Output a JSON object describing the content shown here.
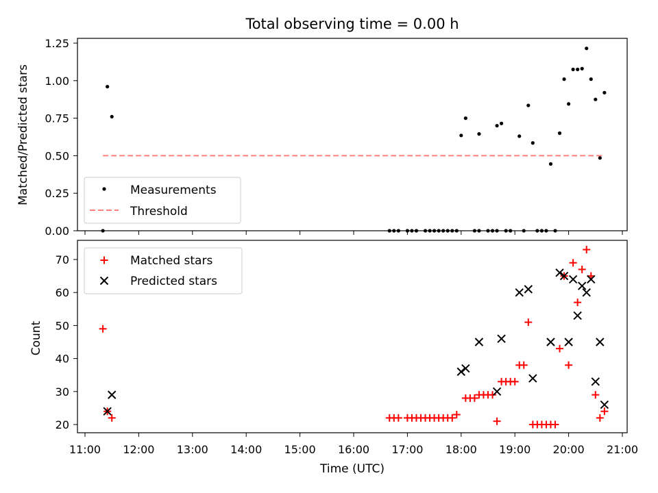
{
  "chart_data": [
    {
      "type": "scatter",
      "title": "Total observing time = 0.00 h",
      "xlabel": "",
      "ylabel": "Matched/Predicted stars",
      "xlim": [
        "11:00",
        "21:00"
      ],
      "ylim": [
        0,
        1.25
      ],
      "yticks": [
        "0.00",
        "0.25",
        "0.50",
        "0.75",
        "1.00",
        "1.25"
      ],
      "legend_position": "lower-left",
      "series": [
        {
          "name": "Measurements",
          "kind": "scatter",
          "color": "#000000",
          "points": [
            [
              "11:20",
              0.0
            ],
            [
              "11:25",
              0.96
            ],
            [
              "11:30",
              0.76
            ],
            [
              "16:40",
              0.0
            ],
            [
              "16:45",
              0.0
            ],
            [
              "16:50",
              0.0
            ],
            [
              "17:00",
              0.0
            ],
            [
              "17:05",
              0.0
            ],
            [
              "17:10",
              0.0
            ],
            [
              "17:20",
              0.0
            ],
            [
              "17:25",
              0.0
            ],
            [
              "17:30",
              0.0
            ],
            [
              "17:35",
              0.0
            ],
            [
              "17:40",
              0.0
            ],
            [
              "17:45",
              0.0
            ],
            [
              "17:50",
              0.0
            ],
            [
              "17:55",
              0.0
            ],
            [
              "18:00",
              0.635
            ],
            [
              "18:05",
              0.75
            ],
            [
              "18:15",
              0.0
            ],
            [
              "18:20",
              0.0
            ],
            [
              "18:20",
              0.645
            ],
            [
              "18:30",
              0.0
            ],
            [
              "18:35",
              0.0
            ],
            [
              "18:40",
              0.0
            ],
            [
              "18:40",
              0.7
            ],
            [
              "18:45",
              0.715
            ],
            [
              "18:50",
              0.0
            ],
            [
              "18:55",
              0.0
            ],
            [
              "19:05",
              0.63
            ],
            [
              "19:10",
              0.0
            ],
            [
              "19:15",
              0.835
            ],
            [
              "19:20",
              0.585
            ],
            [
              "19:25",
              0.0
            ],
            [
              "19:30",
              0.0
            ],
            [
              "19:35",
              0.0
            ],
            [
              "19:40",
              0.445
            ],
            [
              "19:45",
              0.0
            ],
            [
              "19:50",
              0.65
            ],
            [
              "19:55",
              1.01
            ],
            [
              "20:00",
              0.845
            ],
            [
              "20:05",
              1.075
            ],
            [
              "20:10",
              1.075
            ],
            [
              "20:15",
              1.08
            ],
            [
              "20:20",
              1.215
            ],
            [
              "20:25",
              1.01
            ],
            [
              "20:30",
              0.875
            ],
            [
              "20:35",
              0.485
            ],
            [
              "20:40",
              0.92
            ]
          ]
        },
        {
          "name": "Threshold",
          "kind": "dashed-line",
          "color": "#ff7f7f",
          "points": [
            [
              "11:20",
              0.5
            ],
            [
              "20:40",
              0.5
            ]
          ]
        }
      ]
    },
    {
      "type": "scatter",
      "title": "",
      "xlabel": "Time (UTC)",
      "ylabel": "Count",
      "xlim": [
        "11:00",
        "21:00"
      ],
      "ylim": [
        17.5,
        76
      ],
      "xticks": [
        "11:00",
        "12:00",
        "13:00",
        "14:00",
        "15:00",
        "16:00",
        "17:00",
        "18:00",
        "19:00",
        "20:00",
        "21:00"
      ],
      "yticks": [
        "20",
        "30",
        "40",
        "50",
        "60",
        "70"
      ],
      "legend_position": "top-left",
      "series": [
        {
          "name": "Matched stars",
          "kind": "plus",
          "color": "#ff0000",
          "points": [
            [
              "11:20",
              49
            ],
            [
              "11:25",
              24
            ],
            [
              "11:30",
              22
            ],
            [
              "16:40",
              22
            ],
            [
              "16:45",
              22
            ],
            [
              "16:50",
              22
            ],
            [
              "17:00",
              22
            ],
            [
              "17:05",
              22
            ],
            [
              "17:10",
              22
            ],
            [
              "17:15",
              22
            ],
            [
              "17:20",
              22
            ],
            [
              "17:25",
              22
            ],
            [
              "17:30",
              22
            ],
            [
              "17:35",
              22
            ],
            [
              "17:40",
              22
            ],
            [
              "17:45",
              22
            ],
            [
              "17:50",
              22
            ],
            [
              "17:55",
              23
            ],
            [
              "18:05",
              28
            ],
            [
              "18:10",
              28
            ],
            [
              "18:15",
              28
            ],
            [
              "18:20",
              29
            ],
            [
              "18:25",
              29
            ],
            [
              "18:30",
              29
            ],
            [
              "18:35",
              29
            ],
            [
              "18:40",
              21
            ],
            [
              "18:45",
              33
            ],
            [
              "18:50",
              33
            ],
            [
              "18:55",
              33
            ],
            [
              "19:00",
              33
            ],
            [
              "19:05",
              38
            ],
            [
              "19:10",
              38
            ],
            [
              "19:15",
              51
            ],
            [
              "19:20",
              20
            ],
            [
              "19:25",
              20
            ],
            [
              "19:30",
              20
            ],
            [
              "19:35",
              20
            ],
            [
              "19:40",
              20
            ],
            [
              "19:45",
              20
            ],
            [
              "19:50",
              43
            ],
            [
              "19:55",
              65
            ],
            [
              "20:00",
              38
            ],
            [
              "20:05",
              69
            ],
            [
              "20:10",
              57
            ],
            [
              "20:15",
              67
            ],
            [
              "20:20",
              73
            ],
            [
              "20:25",
              65
            ],
            [
              "20:30",
              29
            ],
            [
              "20:35",
              22
            ],
            [
              "20:40",
              24
            ]
          ]
        },
        {
          "name": "Predicted stars",
          "kind": "x",
          "color": "#000000",
          "points": [
            [
              "11:25",
              24
            ],
            [
              "11:30",
              29
            ],
            [
              "18:00",
              36
            ],
            [
              "18:05",
              37
            ],
            [
              "18:20",
              45
            ],
            [
              "18:40",
              30
            ],
            [
              "18:45",
              46
            ],
            [
              "19:05",
              60
            ],
            [
              "19:15",
              61
            ],
            [
              "19:20",
              34
            ],
            [
              "19:40",
              45
            ],
            [
              "19:50",
              66
            ],
            [
              "19:55",
              65
            ],
            [
              "20:00",
              45
            ],
            [
              "20:05",
              64
            ],
            [
              "20:10",
              53
            ],
            [
              "20:15",
              62
            ],
            [
              "20:20",
              60
            ],
            [
              "20:25",
              64
            ],
            [
              "20:30",
              33
            ],
            [
              "20:35",
              45
            ],
            [
              "20:40",
              26
            ]
          ]
        }
      ]
    }
  ]
}
